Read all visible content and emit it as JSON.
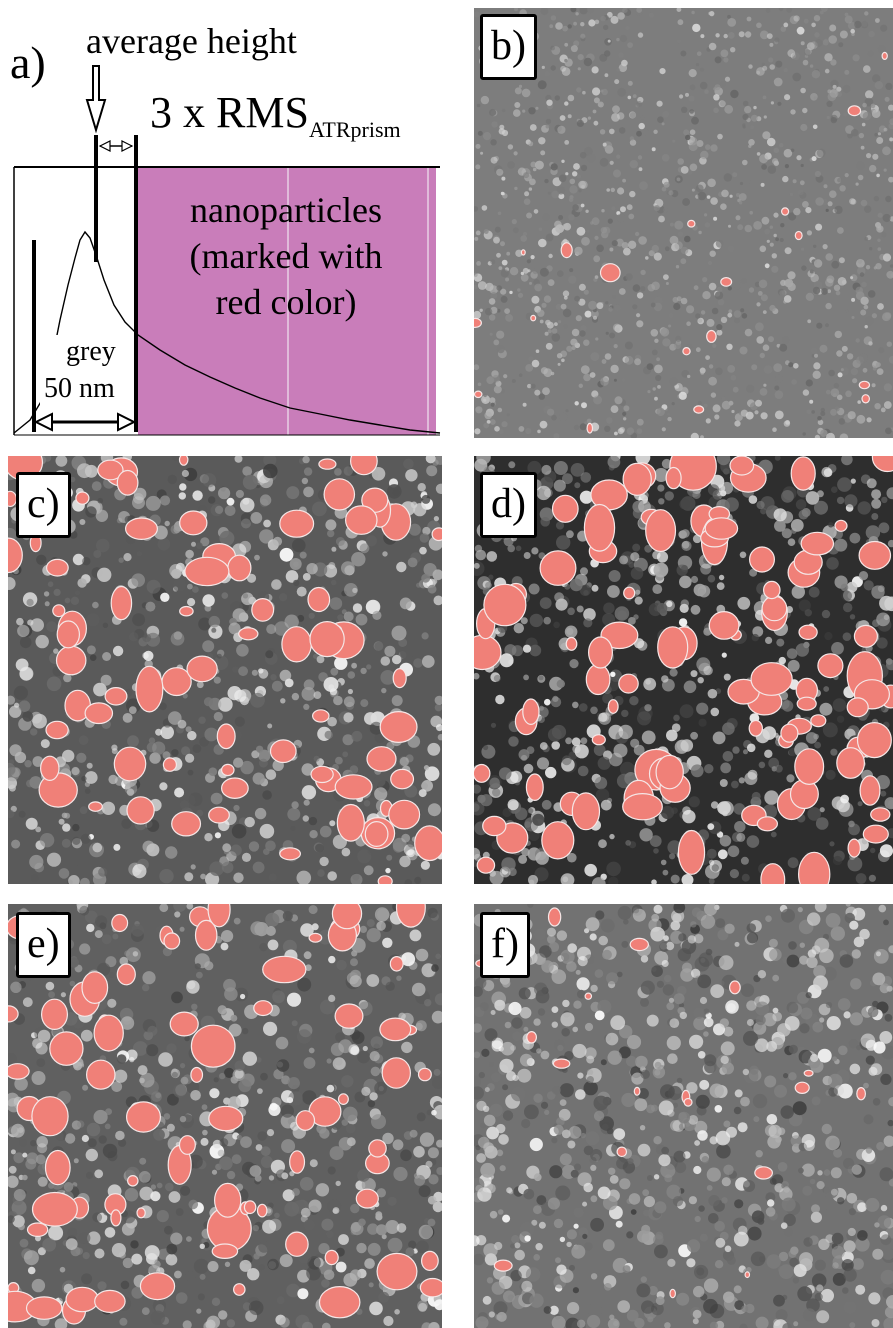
{
  "panel_a": {
    "label": "a)",
    "average_height": "average height",
    "rms_main": "3 x RMS",
    "rms_sub": "ATRprism",
    "nanoparticles_lines": [
      "nanoparticles",
      "(marked with",
      "red color)"
    ],
    "grey": "grey",
    "scale": "50 nm",
    "highlight_color": "#c97dba"
  },
  "panels": [
    {
      "id": "b",
      "label": "b)",
      "tone": "#7d7d7d",
      "contrast": "low",
      "marker_density": "sparse"
    },
    {
      "id": "c",
      "label": "c)",
      "tone": "#5a5a5a",
      "contrast": "high",
      "marker_density": "medium"
    },
    {
      "id": "d",
      "label": "d)",
      "tone": "#2e2e2e",
      "contrast": "high",
      "marker_density": "dense"
    },
    {
      "id": "e",
      "label": "e)",
      "tone": "#606060",
      "contrast": "high",
      "marker_density": "medium"
    },
    {
      "id": "f",
      "label": "f)",
      "tone": "#727272",
      "contrast": "medium",
      "marker_density": "sparse"
    }
  ],
  "colors": {
    "nanoparticle_marker": "#f08078",
    "marker_outline": "#f5e6e6"
  }
}
